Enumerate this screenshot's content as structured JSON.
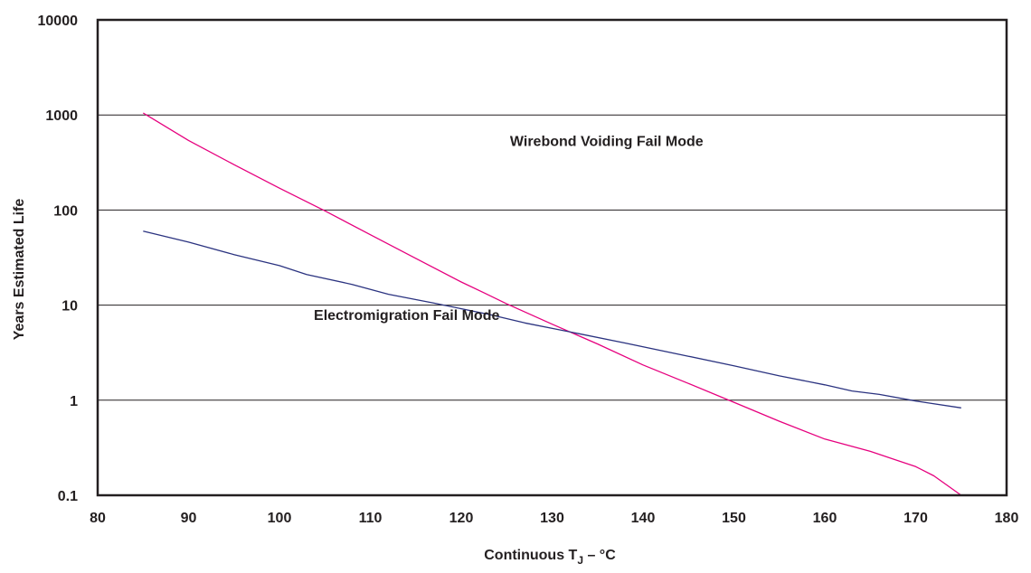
{
  "chart_data": {
    "type": "line",
    "title": "",
    "xlabel": "Continuous T",
    "xlabel_sub": "J",
    "xlabel_suffix": " – °C",
    "ylabel": "Years Estimated Life",
    "xlim": [
      80,
      180
    ],
    "ylim": [
      0.1,
      10000
    ],
    "yscale": "log",
    "grid": "horizontal",
    "xticks": [
      "80",
      "90",
      "100",
      "110",
      "120",
      "130",
      "140",
      "150",
      "160",
      "170",
      "180"
    ],
    "yticks": [
      "10000",
      "1000",
      "100",
      "10",
      "1",
      "0.1"
    ],
    "series": [
      {
        "name": "Wirebond Voiding Fail Mode",
        "color": "#e6007e",
        "x": [
          85,
          90,
          95,
          100,
          105,
          110,
          115,
          120,
          122.5,
          125,
          130,
          135,
          140,
          145,
          150,
          155,
          160,
          165,
          170,
          172,
          175
        ],
        "y": [
          1050,
          540,
          300,
          170,
          98,
          55,
          31,
          17.5,
          13.5,
          10.3,
          6.3,
          3.9,
          2.35,
          1.5,
          0.95,
          0.6,
          0.39,
          0.29,
          0.2,
          0.16,
          0.1
        ]
      },
      {
        "name": "Electromigration Fail Mode",
        "color": "#2b3380",
        "x": [
          85,
          90,
          95,
          100,
          103,
          108,
          112,
          117,
          123,
          127,
          133,
          138,
          145,
          150,
          155,
          160,
          163,
          166,
          170,
          175
        ],
        "y": [
          60,
          46,
          34,
          26,
          21,
          16.5,
          13,
          10.5,
          8,
          6.5,
          5,
          4,
          2.9,
          2.3,
          1.8,
          1.45,
          1.25,
          1.15,
          0.98,
          0.83
        ]
      }
    ],
    "annotations": [
      {
        "text": "Wirebond Voiding Fail Mode",
        "x": 136,
        "y": 470
      },
      {
        "text": "Electromigration Fail Mode",
        "x": 114,
        "y": 7
      }
    ]
  }
}
